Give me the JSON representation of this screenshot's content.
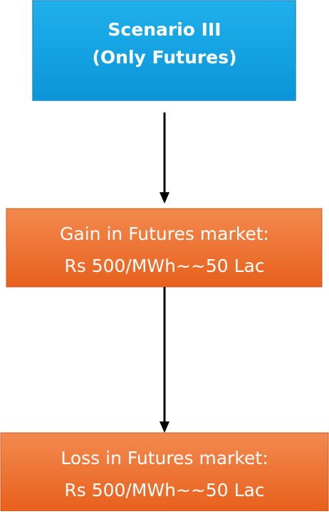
{
  "nodes": [
    {
      "label_lines": [
        "Scenario III",
        "(Only Futures)"
      ]
    },
    {
      "label_lines": [
        "Gain in Futures market:",
        "Rs 500/MWh~~50 Lac"
      ]
    },
    {
      "label_lines": [
        "Loss in Futures market:",
        "Rs 500/MWh~~50 Lac"
      ]
    }
  ]
}
